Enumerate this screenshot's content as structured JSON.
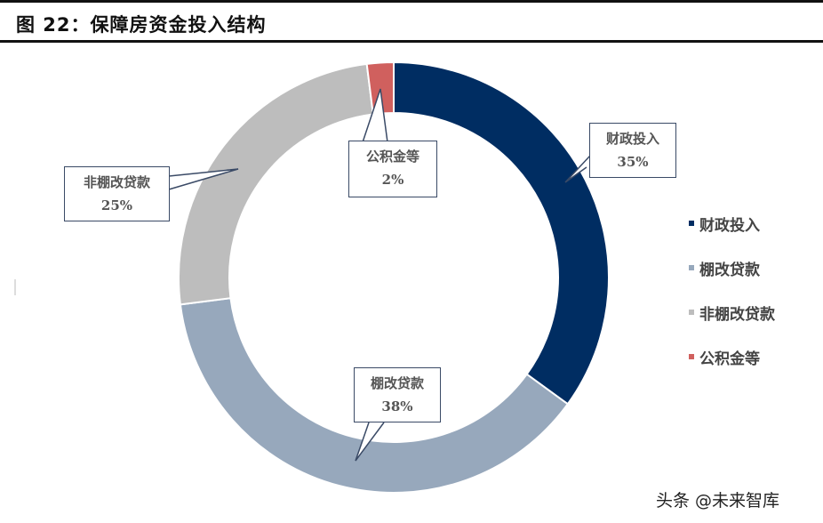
{
  "title": "图 22：保障房资金投入结构",
  "chart_data": {
    "type": "pie",
    "subtype": "donut",
    "title": "保障房资金投入结构",
    "categories": [
      "财政投入",
      "棚改贷款",
      "非棚改贷款",
      "公积金等"
    ],
    "values": [
      35,
      38,
      25,
      2
    ],
    "unit": "%",
    "colors": [
      "#002D62",
      "#97A8BC",
      "#BDBDBD",
      "#D0605E"
    ],
    "legend_position": "right",
    "start_angle": "top, clockwise"
  },
  "labels": [
    {
      "name": "财政投入",
      "value": "35%"
    },
    {
      "name": "棚改贷款",
      "value": "38%"
    },
    {
      "name": "非棚改贷款",
      "value": "25%"
    },
    {
      "name": "公积金等",
      "value": "2%"
    }
  ],
  "legend": [
    {
      "label": "财政投入",
      "color": "#002D62"
    },
    {
      "label": "棚改贷款",
      "color": "#97A8BC"
    },
    {
      "label": "非棚改贷款",
      "color": "#BDBDBD"
    },
    {
      "label": "公积金等",
      "color": "#D0605E"
    }
  ],
  "watermark": "头条 @未来智库"
}
